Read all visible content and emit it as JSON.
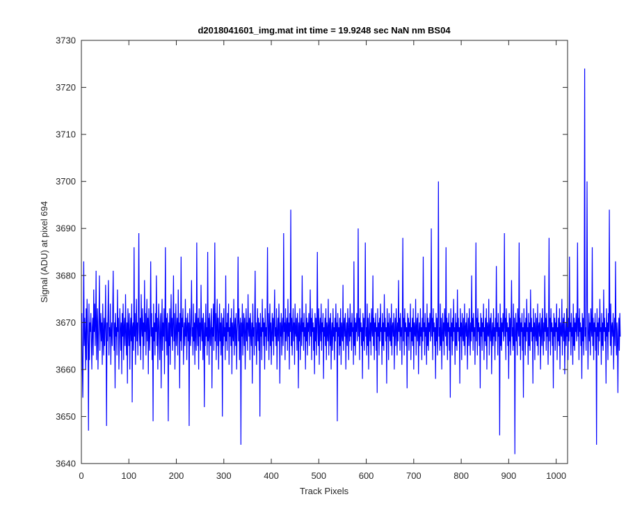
{
  "chart_data": {
    "type": "line",
    "title": "d2018041601_img.mat int time = 19.9248 sec  NaN nm BS04",
    "xlabel": "Track Pixels",
    "ylabel": "Signal (ADU) at pixel 694",
    "xlim": [
      0,
      1024
    ],
    "ylim": [
      3640,
      3730
    ],
    "xticks": [
      0,
      100,
      200,
      300,
      400,
      500,
      600,
      700,
      800,
      900,
      1000
    ],
    "yticks": [
      3640,
      3650,
      3660,
      3670,
      3680,
      3690,
      3700,
      3710,
      3720,
      3730
    ],
    "grid": false,
    "legend": "none",
    "series": [
      {
        "color": "#0000ff",
        "x_start": 1,
        "x_step": 1,
        "values": [
          3672,
          3660,
          3654,
          3668,
          3683,
          3665,
          3671,
          3667,
          3660,
          3673,
          3662,
          3675,
          3669,
          3665,
          3647,
          3674,
          3662,
          3670,
          3668,
          3672,
          3666,
          3660,
          3669,
          3671,
          3663,
          3677,
          3668,
          3674,
          3665,
          3670,
          3681,
          3662,
          3669,
          3673,
          3660,
          3667,
          3671,
          3680,
          3664,
          3669,
          3672,
          3666,
          3670,
          3661,
          3674,
          3668,
          3663,
          3671,
          3665,
          3669,
          3678,
          3667,
          3648,
          3670,
          3666,
          3672,
          3679,
          3663,
          3669,
          3667,
          3674,
          3661,
          3668,
          3670,
          3665,
          3673,
          3681,
          3669,
          3664,
          3670,
          3656,
          3672,
          3667,
          3669,
          3663,
          3677,
          3668,
          3671,
          3660,
          3666,
          3673,
          3669,
          3664,
          3670,
          3659,
          3672,
          3667,
          3674,
          3662,
          3669,
          3671,
          3665,
          3676,
          3668,
          3663,
          3670,
          3657,
          3673,
          3669,
          3665,
          3672,
          3660,
          3668,
          3671,
          3666,
          3674,
          3653,
          3669,
          3670,
          3664,
          3686,
          3667,
          3672,
          3661,
          3669,
          3675,
          3666,
          3670,
          3663,
          3672,
          3689,
          3668,
          3665,
          3671,
          3662,
          3676,
          3669,
          3667,
          3673,
          3660,
          3670,
          3665,
          3679,
          3668,
          3672,
          3663,
          3669,
          3675,
          3666,
          3671,
          3659,
          3673,
          3668,
          3664,
          3670,
          3683,
          3667,
          3672,
          3662,
          3669,
          3649,
          3674,
          3666,
          3670,
          3663,
          3672,
          3668,
          3680,
          3665,
          3671,
          3660,
          3669,
          3674,
          3667,
          3662,
          3670,
          3672,
          3656,
          3668,
          3675,
          3664,
          3670,
          3667,
          3673,
          3659,
          3669,
          3686,
          3666,
          3671,
          3663,
          3672,
          3668,
          3649,
          3670,
          3665,
          3673,
          3661,
          3669,
          3676,
          3667,
          3671,
          3664,
          3670,
          3680,
          3666,
          3672,
          3660,
          3668,
          3674,
          3665,
          3669,
          3671,
          3663,
          3677,
          3668,
          3670,
          3656,
          3672,
          3666,
          3684,
          3664,
          3671,
          3669,
          3673,
          3661,
          3668,
          3670,
          3665,
          3675,
          3667,
          3671,
          3662,
          3669,
          3672,
          3666,
          3670,
          3648,
          3673,
          3668,
          3665,
          3671,
          3679,
          3667,
          3669,
          3663,
          3674,
          3666,
          3670,
          3661,
          3672,
          3668,
          3664,
          3687,
          3669,
          3665,
          3671,
          3660,
          3673,
          3667,
          3670,
          3664,
          3678,
          3669,
          3666,
          3671,
          3662,
          3672,
          3668,
          3652,
          3670,
          3665,
          3674,
          3667,
          3669,
          3663,
          3685,
          3666,
          3671,
          3661,
          3672,
          3668,
          3665,
          3670,
          3673,
          3656,
          3669,
          3667,
          3674,
          3664,
          3670,
          3687,
          3666,
          3672,
          3662,
          3669,
          3675,
          3665,
          3671,
          3660,
          3668,
          3674,
          3666,
          3670,
          3663,
          3672,
          3669,
          3650,
          3671,
          3665,
          3673,
          3667,
          3669,
          3662,
          3680,
          3666,
          3670,
          3664,
          3672,
          3668,
          3674,
          3661,
          3669,
          3667,
          3671,
          3665,
          3673,
          3659,
          3670,
          3668,
          3666,
          3675,
          3663,
          3669,
          3671,
          3665,
          3672,
          3660,
          3668,
          3670,
          3684,
          3666,
          3673,
          3662,
          3669,
          3671,
          3644,
          3670,
          3667,
          3674,
          3663,
          3669,
          3672,
          3665,
          3671,
          3660,
          3668,
          3673,
          3666,
          3670,
          3664,
          3676,
          3669,
          3667,
          3671,
          3662,
          3672,
          3668,
          3665,
          3670,
          3657,
          3674,
          3667,
          3669,
          3663,
          3672,
          3681,
          3665,
          3670,
          3661,
          3668,
          3673,
          3666,
          3671,
          3664,
          3670,
          3650,
          3672,
          3667,
          3669,
          3662,
          3675,
          3668,
          3671,
          3665,
          3670,
          3660,
          3673,
          3667,
          3669,
          3664,
          3671,
          3686,
          3666,
          3672,
          3662,
          3669,
          3674,
          3665,
          3670,
          3661,
          3668,
          3672,
          3666,
          3671,
          3663,
          3670,
          3677,
          3667,
          3669,
          3665,
          3673,
          3660,
          3668,
          3671,
          3666,
          3674,
          3669,
          3657,
          3670,
          3667,
          3672,
          3663,
          3669,
          3671,
          3665,
          3689,
          3668,
          3670,
          3662,
          3673,
          3666,
          3669,
          3671,
          3664,
          3675,
          3667,
          3670,
          3660,
          3672,
          3668,
          3694,
          3665,
          3671,
          3663,
          3669,
          3673,
          3666,
          3670,
          3661,
          3674,
          3668,
          3667,
          3671,
          3664,
          3672,
          3669,
          3656,
          3670,
          3666,
          3673,
          3662,
          3669,
          3671,
          3665,
          3680,
          3668,
          3670,
          3664,
          3672,
          3667,
          3669,
          3660,
          3674,
          3666,
          3671,
          3663,
          3670,
          3668,
          3672,
          3665,
          3669,
          3677,
          3667,
          3671,
          3662,
          3673,
          3668,
          3670,
          3664,
          3669,
          3659,
          3672,
          3666,
          3671,
          3663,
          3670,
          3685,
          3668,
          3665,
          3673,
          3661,
          3669,
          3671,
          3666,
          3674,
          3664,
          3670,
          3668,
          3672,
          3658,
          3669,
          3667,
          3671,
          3665,
          3673,
          3662,
          3670,
          3668,
          3666,
          3675,
          3663,
          3669,
          3671,
          3665,
          3672,
          3660,
          3668,
          3670,
          3664,
          3673,
          3667,
          3669,
          3662,
          3671,
          3666,
          3674,
          3668,
          3670,
          3649,
          3672,
          3667,
          3669,
          3663,
          3671,
          3665,
          3673,
          3661,
          3670,
          3668,
          3666,
          3678,
          3664,
          3669,
          3671,
          3667,
          3672,
          3660,
          3668,
          3670,
          3665,
          3673,
          3669,
          3662,
          3671,
          3666,
          3674,
          3667,
          3670,
          3664,
          3672,
          3668,
          3669,
          3661,
          3683,
          3665,
          3671,
          3663,
          3670,
          3668,
          3672,
          3666,
          3669,
          3690,
          3667,
          3671,
          3662,
          3673,
          3668,
          3670,
          3665,
          3669,
          3658,
          3672,
          3666,
          3671,
          3664,
          3670,
          3687,
          3667,
          3669,
          3663,
          3674,
          3665,
          3671,
          3660,
          3668,
          3672,
          3666,
          3670,
          3663,
          3673,
          3669,
          3667,
          3680,
          3665,
          3671,
          3662,
          3670,
          3668,
          3672,
          3664,
          3669,
          3655,
          3673,
          3667,
          3670,
          3663,
          3671,
          3666,
          3674,
          3668,
          3669,
          3661,
          3672,
          3665,
          3670,
          3664,
          3676,
          3668,
          3671,
          3666,
          3669,
          3657,
          3673,
          3667,
          3670,
          3662,
          3672,
          3668,
          3666,
          3671,
          3665,
          3674,
          3663,
          3669,
          3670,
          3667,
          3672,
          3660,
          3668,
          3671,
          3665,
          3673,
          3669,
          3663,
          3670,
          3666,
          3679,
          3668,
          3671,
          3664,
          3672,
          3667,
          3669,
          3661,
          3670,
          3688,
          3666,
          3671,
          3663,
          3673,
          3668,
          3670,
          3665,
          3669,
          3656,
          3672,
          3667,
          3671,
          3664,
          3670,
          3668,
          3674,
          3662,
          3669,
          3666,
          3671,
          3665,
          3673,
          3660,
          3670,
          3668,
          3667,
          3675,
          3663,
          3669,
          3671,
          3666,
          3672,
          3659,
          3668,
          3670,
          3665,
          3673,
          3667,
          3669,
          3662,
          3671,
          3666,
          3684,
          3668,
          3670,
          3663,
          3672,
          3667,
          3669,
          3661,
          3674,
          3665,
          3671,
          3664,
          3670,
          3668,
          3672,
          3666,
          3669,
          3690,
          3667,
          3671,
          3662,
          3673,
          3668,
          3670,
          3665,
          3669,
          3658,
          3672,
          3666,
          3671,
          3663,
          3670,
          3700,
          3667,
          3669,
          3664,
          3674,
          3665,
          3671,
          3660,
          3668,
          3672,
          3666,
          3670,
          3663,
          3673,
          3669,
          3667,
          3686,
          3665,
          3671,
          3662,
          3670,
          3668,
          3672,
          3664,
          3669,
          3654,
          3673,
          3667,
          3670,
          3663,
          3671,
          3666,
          3675,
          3668,
          3669,
          3661,
          3672,
          3665,
          3670,
          3664,
          3677,
          3668,
          3671,
          3666,
          3669,
          3657,
          3673,
          3667,
          3670,
          3662,
          3672,
          3668,
          3666,
          3671,
          3665,
          3674,
          3663,
          3669,
          3670,
          3667,
          3672,
          3660,
          3668,
          3671,
          3665,
          3673,
          3669,
          3663,
          3670,
          3666,
          3680,
          3668,
          3671,
          3664,
          3672,
          3667,
          3669,
          3661,
          3670,
          3687,
          3666,
          3671,
          3663,
          3673,
          3668,
          3670,
          3665,
          3669,
          3656,
          3672,
          3667,
          3671,
          3664,
          3670,
          3668,
          3674,
          3662,
          3669,
          3666,
          3671,
          3665,
          3673,
          3660,
          3670,
          3668,
          3667,
          3675,
          3663,
          3669,
          3671,
          3666,
          3672,
          3659,
          3668,
          3670,
          3665,
          3673,
          3667,
          3669,
          3662,
          3671,
          3666,
          3682,
          3668,
          3670,
          3663,
          3672,
          3667,
          3669,
          3646,
          3674,
          3665,
          3671,
          3664,
          3670,
          3668,
          3672,
          3666,
          3669,
          3689,
          3667,
          3671,
          3662,
          3673,
          3668,
          3670,
          3665,
          3669,
          3658,
          3672,
          3666,
          3671,
          3663,
          3670,
          3679,
          3667,
          3669,
          3664,
          3674,
          3665,
          3671,
          3642,
          3668,
          3672,
          3666,
          3670,
          3663,
          3673,
          3669,
          3667,
          3687,
          3665,
          3671,
          3662,
          3670,
          3668,
          3672,
          3664,
          3669,
          3654,
          3673,
          3667,
          3670,
          3663,
          3671,
          3666,
          3675,
          3668,
          3669,
          3661,
          3672,
          3665,
          3670,
          3664,
          3677,
          3668,
          3671,
          3666,
          3669,
          3657,
          3673,
          3667,
          3670,
          3662,
          3672,
          3668,
          3666,
          3671,
          3665,
          3674,
          3663,
          3669,
          3670,
          3667,
          3672,
          3660,
          3668,
          3671,
          3665,
          3673,
          3669,
          3663,
          3670,
          3666,
          3680,
          3668,
          3671,
          3664,
          3672,
          3667,
          3669,
          3661,
          3670,
          3688,
          3666,
          3671,
          3663,
          3673,
          3668,
          3670,
          3665,
          3669,
          3656,
          3672,
          3667,
          3671,
          3664,
          3670,
          3668,
          3674,
          3662,
          3669,
          3666,
          3671,
          3665,
          3673,
          3660,
          3670,
          3668,
          3667,
          3675,
          3663,
          3669,
          3671,
          3666,
          3672,
          3659,
          3668,
          3670,
          3665,
          3673,
          3667,
          3669,
          3662,
          3671,
          3666,
          3684,
          3668,
          3670,
          3663,
          3672,
          3667,
          3669,
          3661,
          3674,
          3665,
          3671,
          3664,
          3670,
          3668,
          3672,
          3666,
          3669,
          3687,
          3667,
          3671,
          3662,
          3673,
          3668,
          3670,
          3665,
          3669,
          3658,
          3672,
          3666,
          3671,
          3663,
          3670,
          3724,
          3667,
          3669,
          3664,
          3674,
          3700,
          3671,
          3660,
          3668,
          3672,
          3666,
          3670,
          3663,
          3673,
          3669,
          3667,
          3686,
          3665,
          3671,
          3662,
          3670,
          3668,
          3672,
          3664,
          3669,
          3644,
          3673,
          3667,
          3670,
          3663,
          3671,
          3666,
          3675,
          3668,
          3669,
          3661,
          3672,
          3665,
          3670,
          3664,
          3677,
          3668,
          3671,
          3666,
          3669,
          3657,
          3673,
          3667,
          3670,
          3662,
          3672,
          3668,
          3694,
          3671,
          3665,
          3674,
          3663,
          3669,
          3670,
          3667,
          3672,
          3660,
          3668,
          3671,
          3665,
          3683,
          3669,
          3663,
          3670,
          3666,
          3655,
          3668,
          3671,
          3664,
          3672,
          3667
        ]
      }
    ]
  }
}
